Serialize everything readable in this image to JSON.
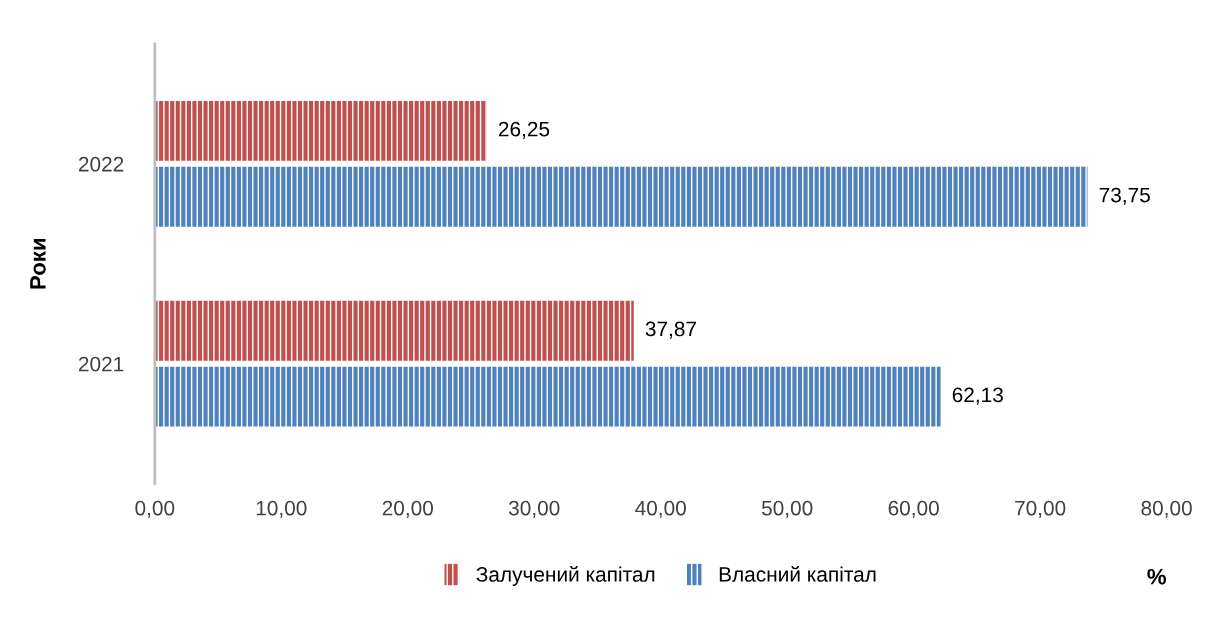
{
  "chart_data": {
    "type": "bar",
    "orientation": "horizontal",
    "ylabel": "Роки",
    "xlabel": "%",
    "categories": [
      "2022",
      "2021"
    ],
    "series": [
      {
        "name": "Залучений капітал",
        "color": "#c0504d",
        "values": [
          26.25,
          37.87
        ],
        "value_labels": [
          "26,25",
          "37,87"
        ]
      },
      {
        "name": "Власний капітал",
        "color": "#4f81bd",
        "values": [
          73.75,
          62.13
        ],
        "value_labels": [
          "73,75",
          "62,13"
        ]
      }
    ],
    "xlim": [
      0,
      80
    ],
    "xticks": [
      {
        "value": 0,
        "label": "0,00"
      },
      {
        "value": 10,
        "label": "10,00"
      },
      {
        "value": 20,
        "label": "20,00"
      },
      {
        "value": 30,
        "label": "30,00"
      },
      {
        "value": 40,
        "label": "40,00"
      },
      {
        "value": 50,
        "label": "50,00"
      },
      {
        "value": 60,
        "label": "60,00"
      },
      {
        "value": 70,
        "label": "70,00"
      },
      {
        "value": 80,
        "label": "80,00"
      }
    ],
    "grid": false,
    "legend": "bottom"
  }
}
